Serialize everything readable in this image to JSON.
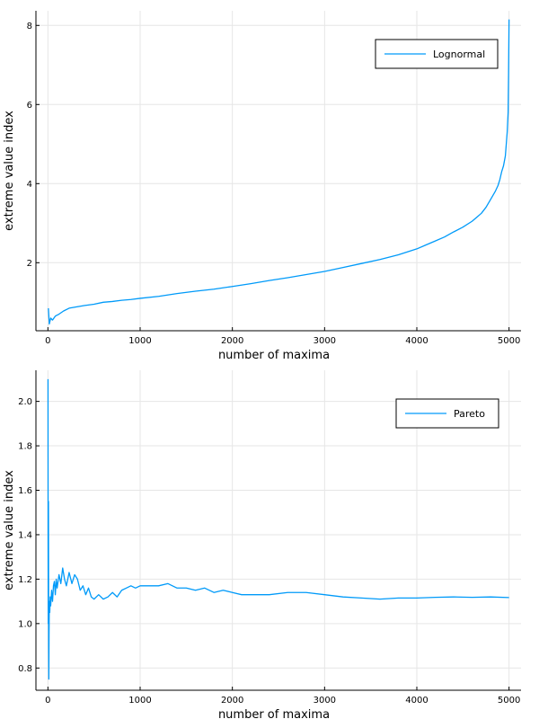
{
  "chart_data": [
    {
      "type": "line",
      "xlabel": "number of maxima",
      "ylabel": "extreme value index",
      "xlim": [
        -130,
        5130
      ],
      "ylim": [
        0.28,
        8.37
      ],
      "xticks": [
        0,
        1000,
        2000,
        3000,
        4000,
        5000
      ],
      "yticks": [
        2,
        4,
        6,
        8
      ],
      "grid": true,
      "legend_position": "top-right",
      "color": "#009af9",
      "series": [
        {
          "name": "Lognormal",
          "x": [
            5,
            15,
            30,
            50,
            80,
            120,
            170,
            230,
            300,
            400,
            500,
            600,
            700,
            800,
            900,
            1000,
            1200,
            1400,
            1600,
            1800,
            2000,
            2200,
            2400,
            2600,
            2800,
            3000,
            3200,
            3400,
            3600,
            3800,
            4000,
            4100,
            4200,
            4300,
            4400,
            4500,
            4600,
            4650,
            4700,
            4750,
            4800,
            4850,
            4880,
            4900,
            4920,
            4940,
            4960,
            4970,
            4980,
            4990,
            4995,
            5000
          ],
          "y": [
            0.85,
            0.45,
            0.6,
            0.55,
            0.65,
            0.7,
            0.78,
            0.85,
            0.88,
            0.92,
            0.95,
            1.0,
            1.02,
            1.05,
            1.07,
            1.1,
            1.15,
            1.22,
            1.28,
            1.33,
            1.4,
            1.47,
            1.55,
            1.62,
            1.7,
            1.78,
            1.88,
            1.98,
            2.08,
            2.2,
            2.35,
            2.45,
            2.55,
            2.65,
            2.78,
            2.9,
            3.05,
            3.15,
            3.25,
            3.4,
            3.6,
            3.8,
            3.95,
            4.1,
            4.3,
            4.45,
            4.7,
            5.0,
            5.3,
            5.8,
            6.8,
            8.15
          ]
        }
      ]
    },
    {
      "type": "line",
      "xlabel": "number of maxima",
      "ylabel": "extreme value index",
      "xlim": [
        -130,
        5130
      ],
      "ylim": [
        0.7,
        2.14
      ],
      "xticks": [
        0,
        1000,
        2000,
        3000,
        4000,
        5000
      ],
      "yticks": [
        0.8,
        1.0,
        1.2,
        1.4,
        1.6,
        1.8,
        2.0
      ],
      "grid": true,
      "legend_position": "top-right",
      "color": "#009af9",
      "series": [
        {
          "name": "Pareto",
          "x": [
            1,
            2,
            4,
            6,
            8,
            10,
            12,
            15,
            20,
            25,
            30,
            40,
            50,
            60,
            70,
            80,
            90,
            100,
            120,
            140,
            160,
            180,
            200,
            230,
            260,
            290,
            320,
            350,
            380,
            410,
            440,
            470,
            500,
            550,
            600,
            650,
            700,
            750,
            800,
            850,
            900,
            950,
            1000,
            1100,
            1200,
            1300,
            1400,
            1500,
            1600,
            1700,
            1800,
            1900,
            2000,
            2100,
            2200,
            2400,
            2600,
            2800,
            3000,
            3200,
            3400,
            3600,
            3800,
            4000,
            4200,
            4400,
            4600,
            4800,
            5000
          ],
          "y": [
            2.1,
            1.4,
            1.0,
            1.55,
            0.9,
            0.75,
            0.95,
            1.1,
            1.05,
            1.12,
            1.08,
            1.15,
            1.1,
            1.17,
            1.19,
            1.13,
            1.2,
            1.16,
            1.22,
            1.18,
            1.25,
            1.2,
            1.17,
            1.23,
            1.18,
            1.22,
            1.2,
            1.15,
            1.17,
            1.13,
            1.16,
            1.12,
            1.11,
            1.13,
            1.11,
            1.12,
            1.14,
            1.12,
            1.15,
            1.16,
            1.17,
            1.16,
            1.17,
            1.17,
            1.17,
            1.18,
            1.16,
            1.16,
            1.15,
            1.16,
            1.14,
            1.15,
            1.14,
            1.13,
            1.13,
            1.13,
            1.14,
            1.14,
            1.13,
            1.12,
            1.115,
            1.11,
            1.115,
            1.115,
            1.118,
            1.12,
            1.118,
            1.12,
            1.117
          ]
        }
      ]
    }
  ]
}
